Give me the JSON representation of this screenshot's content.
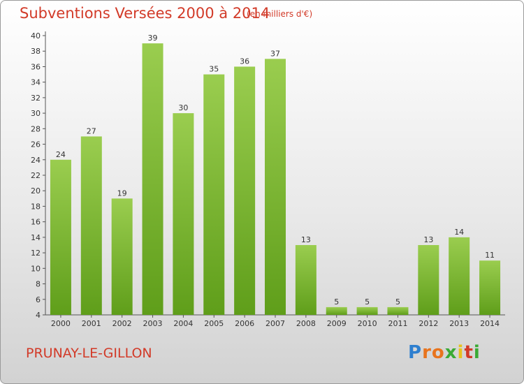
{
  "header": {
    "title": "Subventions Versées 2000 à 2014",
    "unit": "(en milliers d'€)"
  },
  "footer": {
    "commune": "PRUNAY-LE-GILLON",
    "logo_letters": [
      "P",
      "r",
      "o",
      "x",
      "i",
      "t",
      "i"
    ],
    "logo_colors": [
      "#2e7fcf",
      "#e8741e",
      "#e8741e",
      "#3aaa35",
      "#e8c21e",
      "#d23a28",
      "#3aaa35"
    ]
  },
  "colors": {
    "bar_top": "#9acd4f",
    "bar_bottom": "#5f9e1a",
    "text": "#333333",
    "accent": "#d23a28"
  },
  "chart_data": {
    "type": "bar",
    "categories": [
      "2000",
      "2001",
      "2002",
      "2003",
      "2004",
      "2005",
      "2006",
      "2007",
      "2008",
      "2009",
      "2010",
      "2011",
      "2012",
      "2013",
      "2014"
    ],
    "values": [
      24,
      27,
      19,
      39,
      30,
      35,
      36,
      37,
      13,
      5,
      5,
      5,
      13,
      14,
      11
    ],
    "ylim": [
      4,
      40
    ],
    "yticks": [
      4,
      6,
      8,
      10,
      12,
      14,
      16,
      18,
      20,
      22,
      24,
      26,
      28,
      30,
      32,
      34,
      36,
      38,
      40
    ],
    "grid": false
  }
}
